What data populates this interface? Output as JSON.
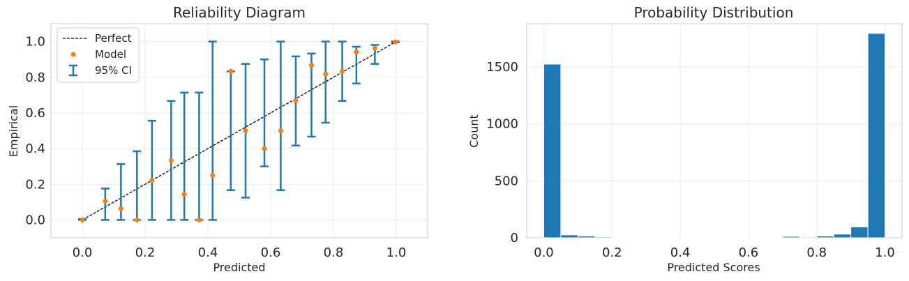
{
  "chart_data": [
    {
      "type": "scatter",
      "title": "Reliability Diagram",
      "xlabel": "Predicted",
      "ylabel": "Empirical",
      "xlim": [
        -0.1,
        1.1
      ],
      "ylim": [
        -0.1,
        1.1
      ],
      "xticks": [
        0.0,
        0.2,
        0.4,
        0.6,
        0.8,
        1.0
      ],
      "yticks": [
        0.0,
        0.2,
        0.4,
        0.6,
        0.8,
        1.0
      ],
      "xtick_labels": [
        "0.0",
        "0.2",
        "0.4",
        "0.6",
        "0.8",
        "1.0"
      ],
      "ytick_labels": [
        "0.0",
        "0.2",
        "0.4",
        "0.6",
        "0.8",
        "1.0"
      ],
      "grid": true,
      "legend": {
        "placement": "top-left",
        "entries": [
          "Perfect",
          "Model",
          "95% CI"
        ]
      },
      "perfect_line": {
        "name": "Perfect",
        "x": [
          0,
          1
        ],
        "y": [
          0,
          1
        ],
        "style": "dashed",
        "color": "#000000"
      },
      "series": [
        {
          "name": "Model",
          "color": "#ff7f0e",
          "x": [
            0.0,
            0.073,
            0.123,
            0.174,
            0.222,
            0.283,
            0.325,
            0.372,
            0.415,
            0.473,
            0.52,
            0.58,
            0.632,
            0.68,
            0.73,
            0.775,
            0.828,
            0.873,
            0.932,
            0.997
          ],
          "y": [
            0.0,
            0.105,
            0.063,
            0.0,
            0.222,
            0.333,
            0.143,
            0.0,
            0.25,
            0.833,
            0.5,
            0.4,
            0.5,
            0.667,
            0.867,
            0.818,
            0.833,
            0.941,
            0.963,
            0.998
          ]
        }
      ],
      "ci": {
        "name": "95% CI",
        "color": "#1f77b4",
        "lower": [
          0.0,
          0.0,
          0.0,
          0.0,
          0.0,
          0.0,
          0.0,
          0.0,
          0.0,
          0.167,
          0.125,
          0.3,
          0.167,
          0.417,
          0.467,
          0.545,
          0.667,
          0.765,
          0.875,
          0.995
        ],
        "upper": [
          0.005,
          0.176,
          0.313,
          0.385,
          0.556,
          0.667,
          0.714,
          0.714,
          1.0,
          0.833,
          0.875,
          0.9,
          1.0,
          0.917,
          0.933,
          1.0,
          1.0,
          0.971,
          0.981,
          1.0
        ]
      }
    },
    {
      "type": "bar",
      "title": "Probability Distribution",
      "xlabel": "Predicted Scores",
      "ylabel": "Count",
      "xlim": [
        -0.05,
        1.05
      ],
      "ylim": [
        0,
        1880
      ],
      "xticks": [
        0.0,
        0.2,
        0.4,
        0.6,
        0.8,
        1.0
      ],
      "yticks": [
        0,
        500,
        1000,
        1500
      ],
      "xtick_labels": [
        "0.0",
        "0.2",
        "0.4",
        "0.6",
        "0.8",
        "1.0"
      ],
      "ytick_labels": [
        "0",
        "500",
        "1000",
        "1500"
      ],
      "grid": true,
      "color": "#1f77b4",
      "bin_edges": [
        0.0,
        0.05,
        0.1,
        0.15,
        0.2,
        0.25,
        0.3,
        0.35,
        0.4,
        0.45,
        0.5,
        0.55,
        0.6,
        0.65,
        0.7,
        0.75,
        0.8,
        0.85,
        0.9,
        0.95,
        1.0
      ],
      "values": [
        1525,
        25,
        15,
        8,
        6,
        3,
        2,
        2,
        2,
        2,
        5,
        5,
        2,
        5,
        12,
        7,
        15,
        32,
        95,
        1795
      ]
    }
  ]
}
